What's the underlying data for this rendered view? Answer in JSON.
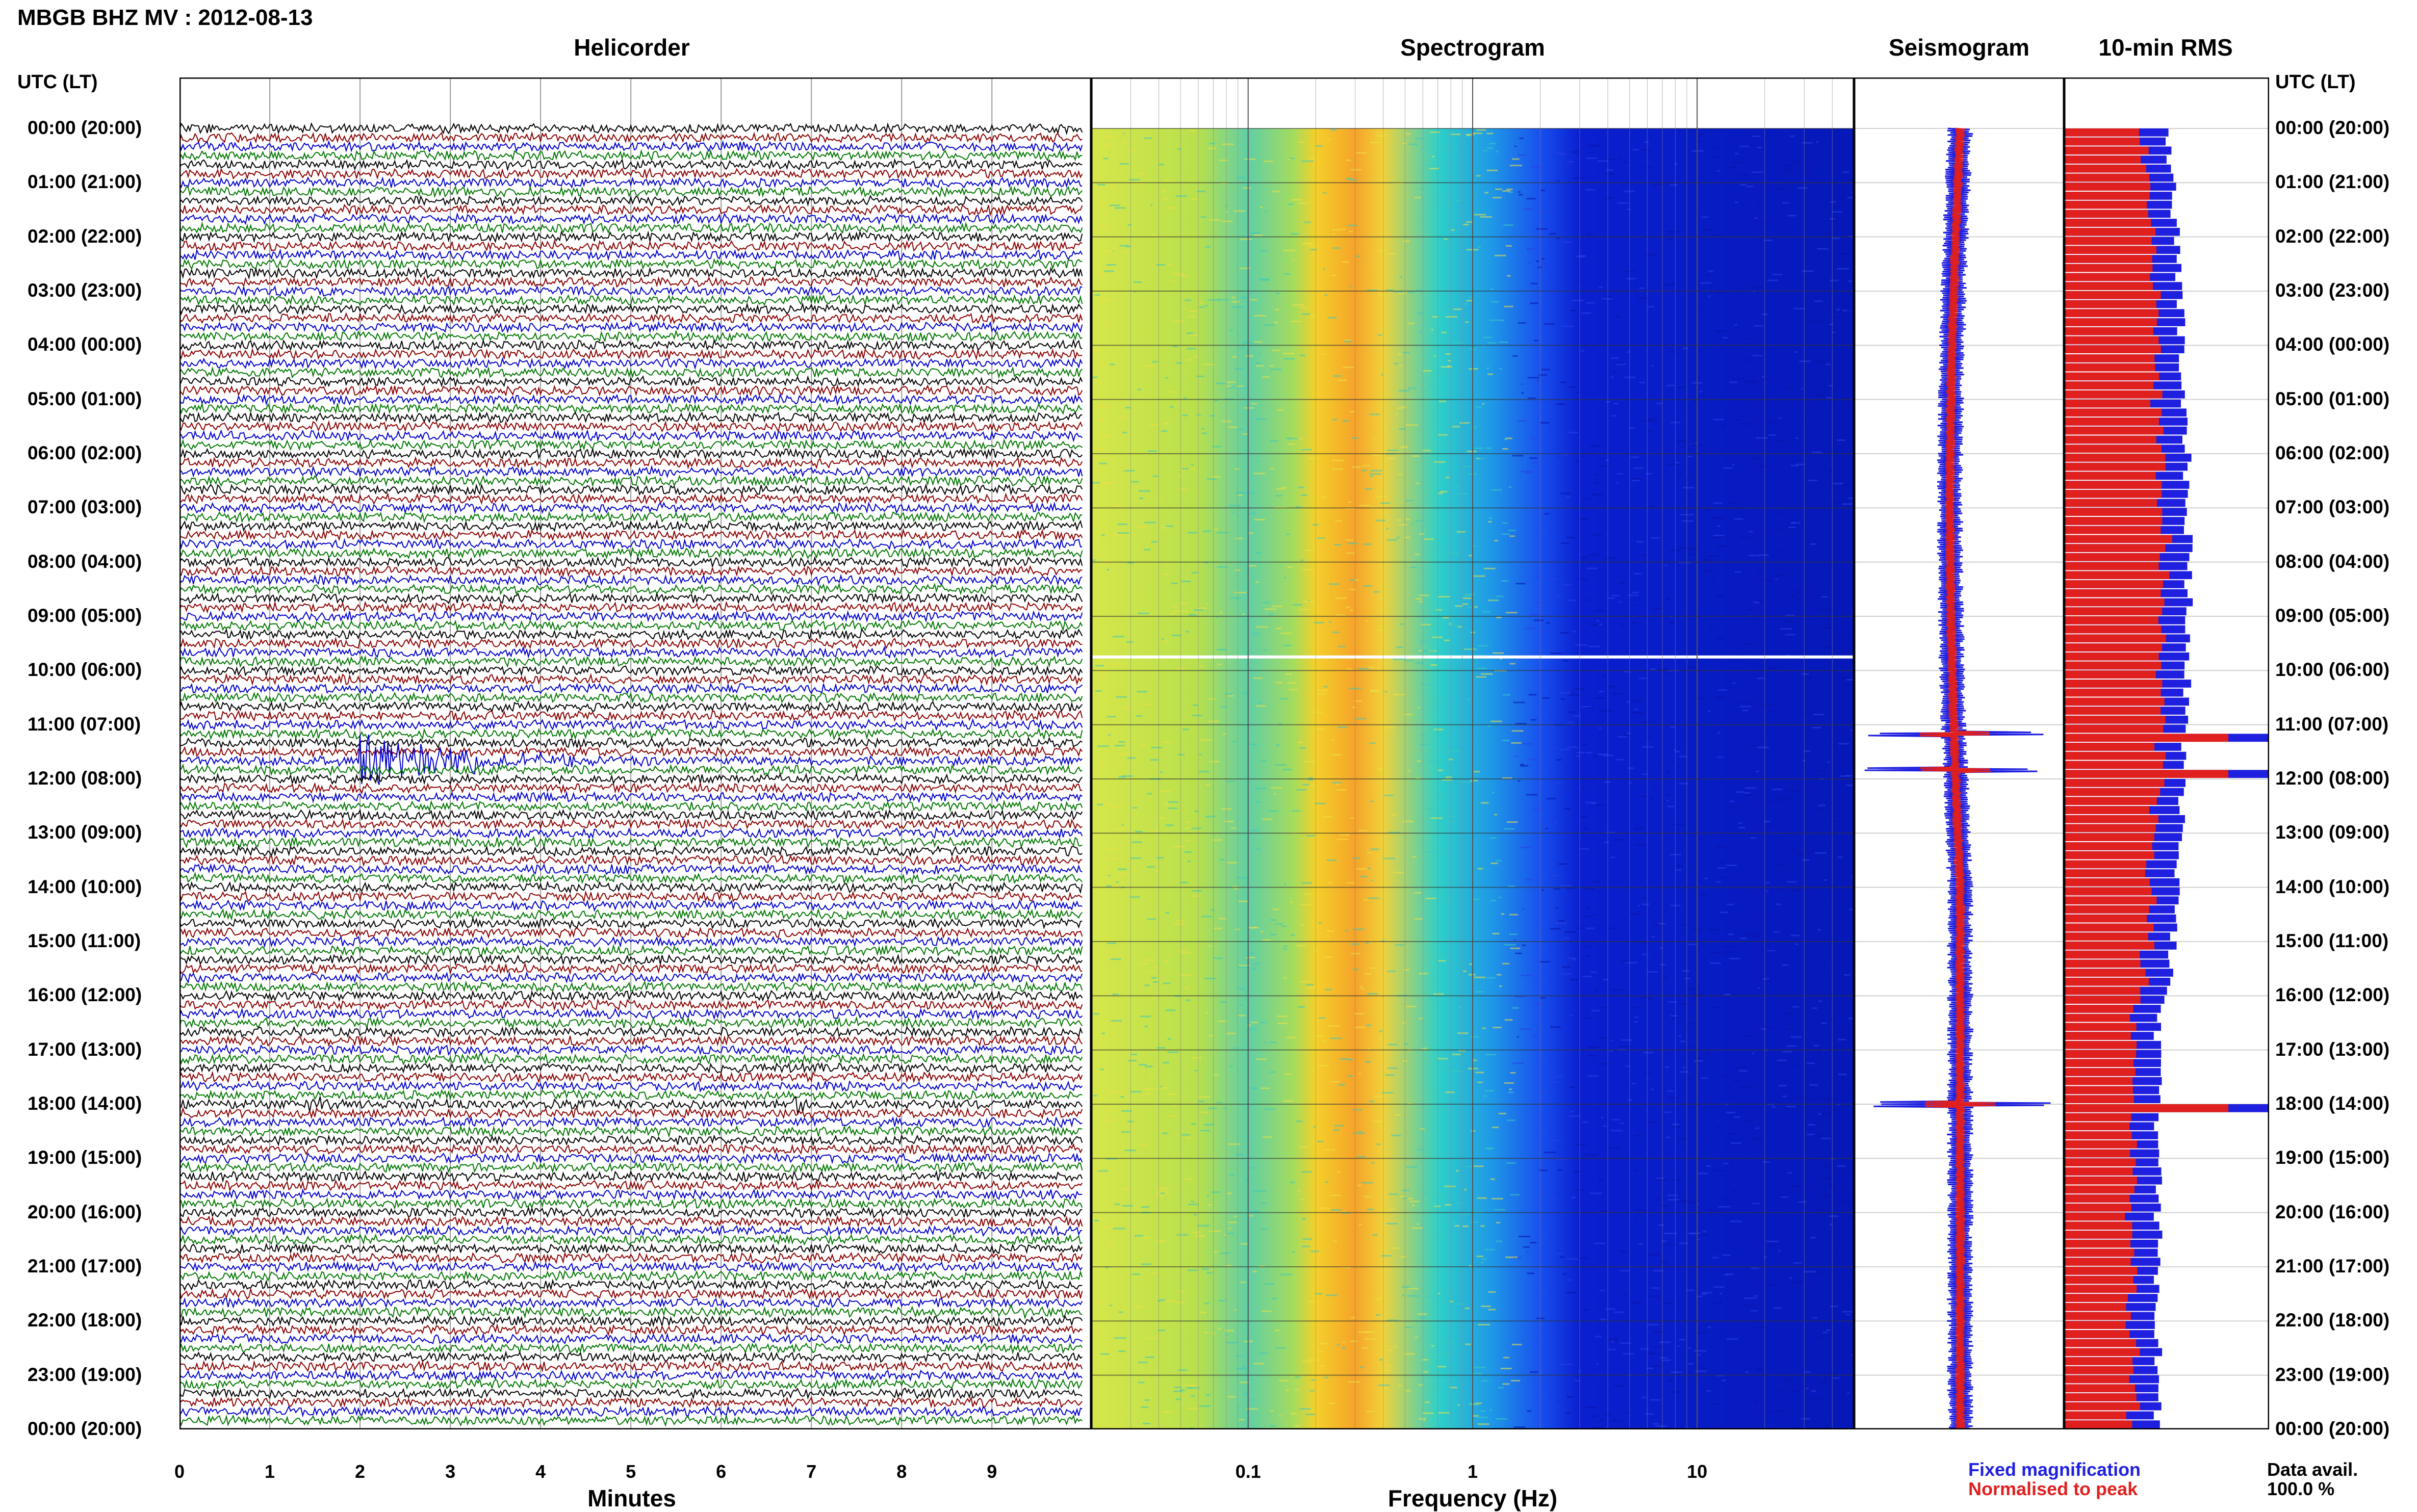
{
  "title": "MBGB BHZ MV : 2012-08-13",
  "panels": {
    "helicorder": "Helicorder",
    "spectrogram": "Spectrogram",
    "seismogram": "Seismogram",
    "rms": "10-min RMS"
  },
  "time_axis_header": "UTC (LT)",
  "colors": {
    "trace_cycle": [
      "#000000",
      "#8b0000",
      "#0000cc",
      "#007700"
    ],
    "fixed_magnification": "#1f1fe0",
    "normalised_to_peak": "#e01f1f"
  },
  "legend": {
    "fixed": "Fixed magnification",
    "normalised": "Normalised to peak"
  },
  "data_availability": {
    "label": "Data avail.",
    "value": "100.0 %"
  },
  "chart_data": [
    {
      "type": "line",
      "name": "helicorder",
      "title": "Helicorder",
      "xlabel": "Minutes",
      "x_ticks": [
        "0",
        "1",
        "2",
        "3",
        "4",
        "5",
        "6",
        "7",
        "8",
        "9"
      ],
      "xlim": [
        0,
        10
      ],
      "row_minutes": 10,
      "rows": 144,
      "time_labels": [
        "00:00 (20:00)",
        "01:00 (21:00)",
        "02:00 (22:00)",
        "03:00 (23:00)",
        "04:00 (00:00)",
        "05:00 (01:00)",
        "06:00 (02:00)",
        "07:00 (03:00)",
        "08:00 (04:00)",
        "09:00 (05:00)",
        "10:00 (06:00)",
        "11:00 (07:00)",
        "12:00 (08:00)",
        "13:00 (09:00)",
        "14:00 (10:00)",
        "15:00 (11:00)",
        "16:00 (12:00)",
        "17:00 (13:00)",
        "18:00 (14:00)",
        "19:00 (15:00)",
        "20:00 (16:00)",
        "21:00 (17:00)",
        "22:00 (18:00)",
        "23:00 (19:00)",
        "00:00 (20:00)"
      ],
      "events": [
        {
          "hour": 11.67,
          "minute_start": 2.0,
          "minute_end": 5.2,
          "amplitude": 6.0
        },
        {
          "hour": 18.0,
          "minute_start": 1.4,
          "minute_end": 2.0,
          "amplitude": 1.5
        },
        {
          "hour": 18.0,
          "minute_start": 6.8,
          "minute_end": 7.5,
          "amplitude": 1.5
        },
        {
          "hour": 21.83,
          "minute_start": 9.2,
          "minute_end": 9.9,
          "amplitude": 1.2
        }
      ]
    },
    {
      "type": "heatmap",
      "name": "spectrogram",
      "title": "Spectrogram",
      "xlabel": "Frequency (Hz)",
      "x_scale": "log",
      "x_ticks": [
        "0.1",
        "1",
        "10"
      ],
      "xlim": [
        0.02,
        50
      ],
      "peak_band_hz": [
        0.2,
        0.4
      ],
      "data_gap_hour": 9.75
    },
    {
      "type": "line",
      "name": "seismogram",
      "title": "Seismogram",
      "series": [
        "Fixed magnification",
        "Normalised to peak"
      ],
      "spikes_hour": [
        11.17,
        11.83,
        18.0
      ]
    },
    {
      "type": "bar",
      "name": "rms",
      "title": "10-min RMS",
      "interval_minutes": 10,
      "series": [
        "Fixed magnification",
        "Normalised to peak"
      ],
      "peaks_hour": [
        11.17,
        11.83,
        18.0
      ]
    }
  ]
}
